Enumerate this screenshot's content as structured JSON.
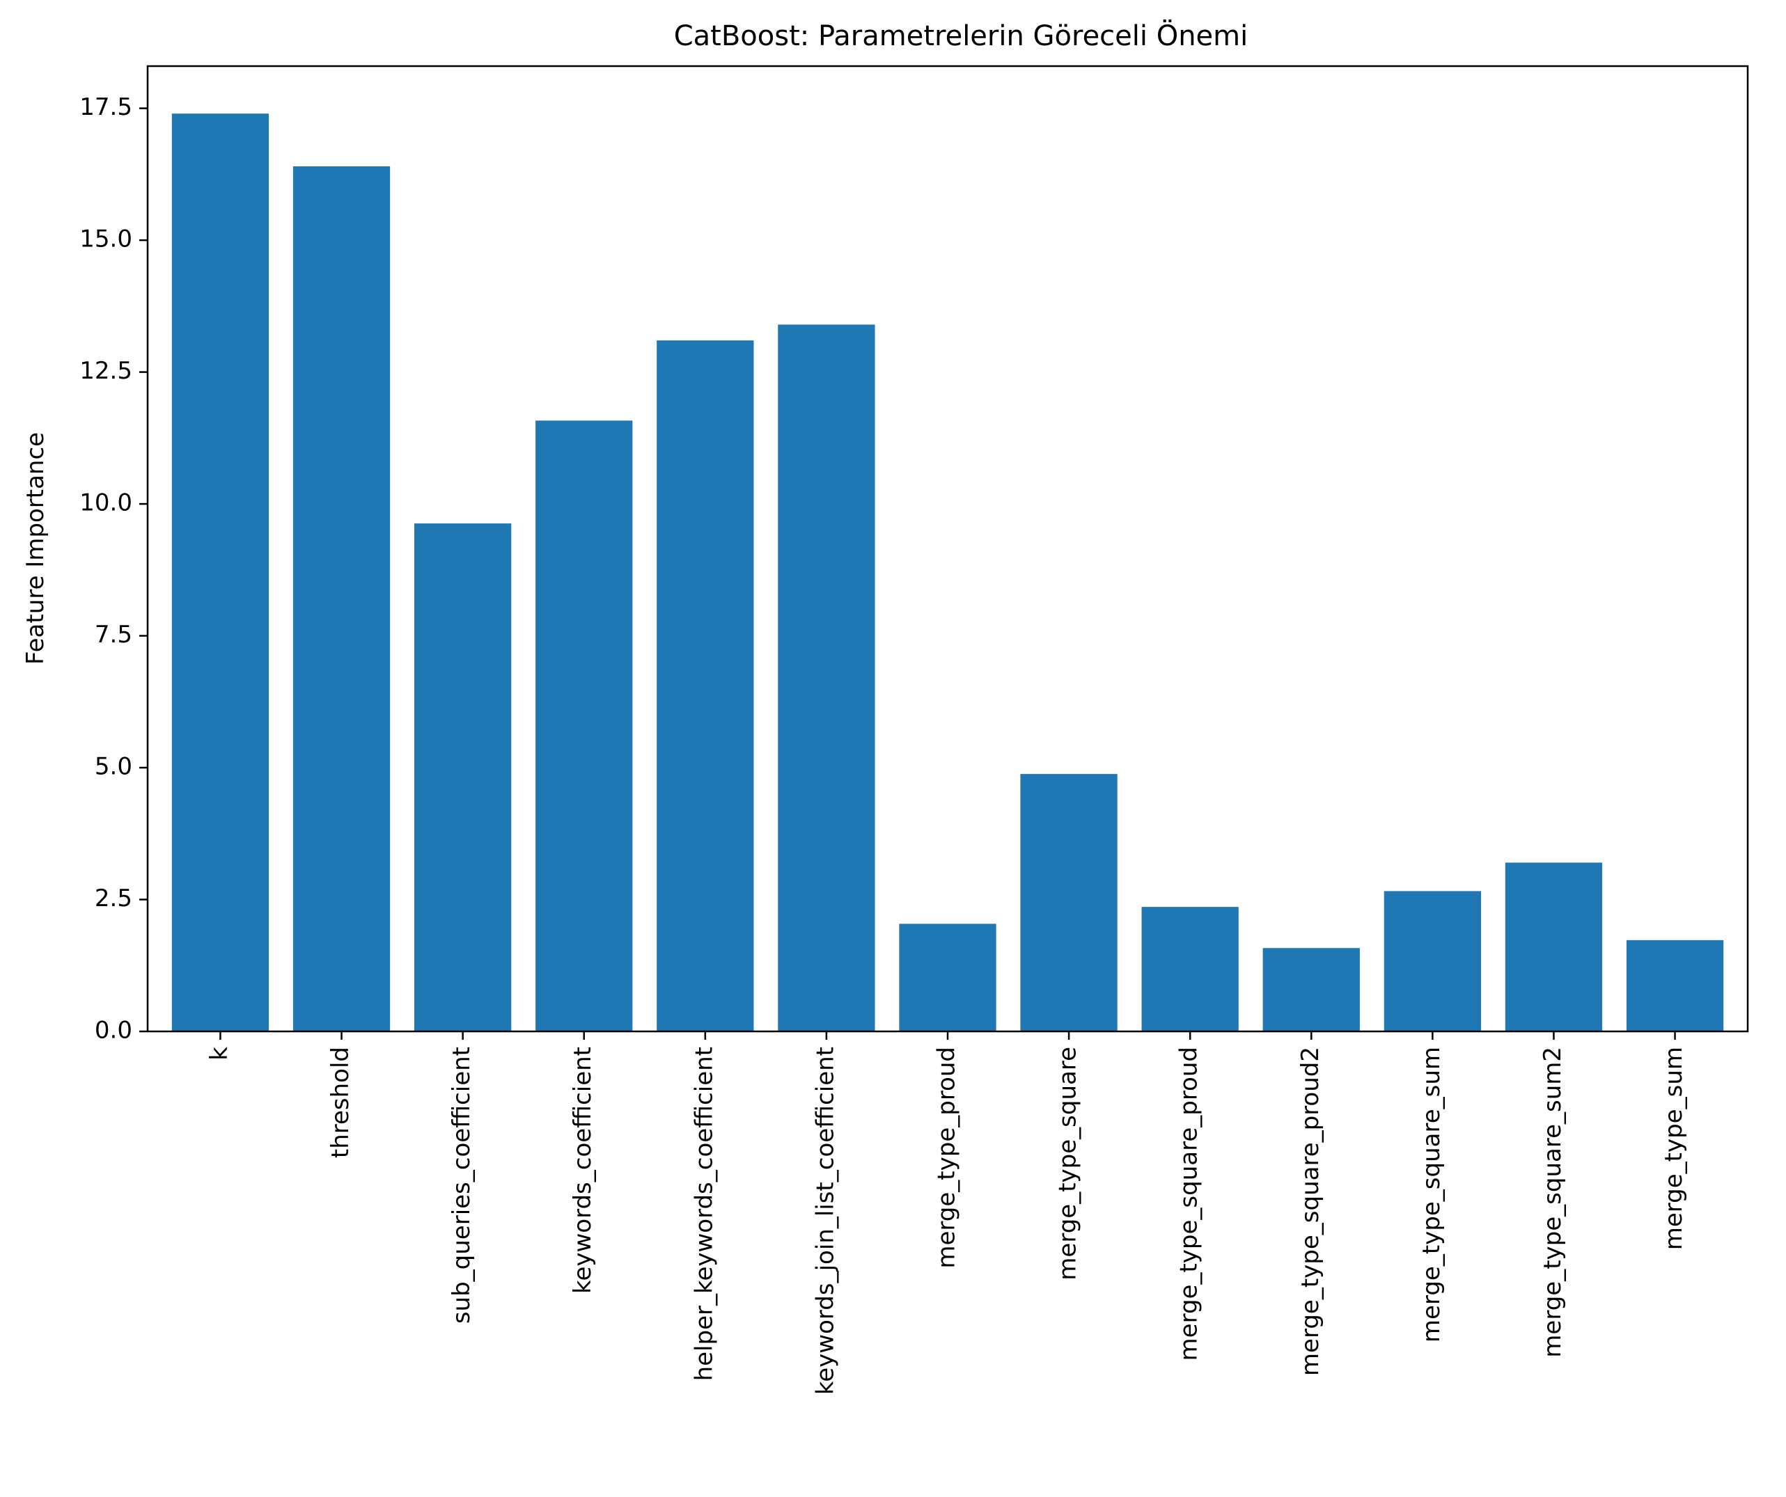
{
  "chart_data": {
    "type": "bar",
    "title": "CatBoost: Parametrelerin Göreceli Önemi",
    "xlabel": "",
    "ylabel": "Feature Importance",
    "categories": [
      "k",
      "threshold",
      "sub_queries_coefficient",
      "keywords_coefficient",
      "helper_keywords_coefficient",
      "keywords_join_list_coefficient",
      "merge_type_proud",
      "merge_type_square",
      "merge_type_square_proud",
      "merge_type_square_proud2",
      "merge_type_square_sum",
      "merge_type_square_sum2",
      "merge_type_sum"
    ],
    "values": [
      17.4,
      16.4,
      9.63,
      11.58,
      13.1,
      13.4,
      2.04,
      4.88,
      2.36,
      1.58,
      2.66,
      3.2,
      1.73
    ],
    "ylim": [
      0,
      18.3
    ],
    "yticks": [
      0.0,
      2.5,
      5.0,
      7.5,
      10.0,
      12.5,
      15.0,
      17.5
    ],
    "ytick_labels": [
      "0.0",
      "2.5",
      "5.0",
      "7.5",
      "10.0",
      "12.5",
      "15.0",
      "17.5"
    ],
    "grid": false,
    "bar_color": "#1f77b4"
  }
}
